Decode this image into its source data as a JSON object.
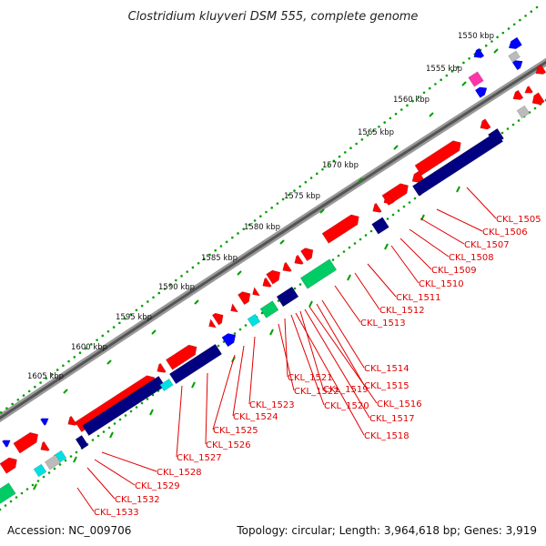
{
  "title": "Clostridium kluyveri DSM 555, complete genome",
  "accession": "Accession: NC_009706",
  "topology": "Topology: circular; Length: 3,964,618 bp; Genes: 3,919",
  "ticks": [
    "1550 kbp",
    "1555 kbp",
    "1560 kbp",
    "1565 kbp",
    "1570 kbp",
    "1575 kbp",
    "1580 kbp",
    "1585 kbp",
    "1590 kbp",
    "1595 kbp",
    "1600 kbp",
    "1605 kbp"
  ],
  "genes": [
    "CKL_1505",
    "CKL_1506",
    "CKL_1507",
    "CKL_1508",
    "CKL_1509",
    "CKL_1510",
    "CKL_1511",
    "CKL_1512",
    "CKL_1513",
    "CKL_1514",
    "CKL_1515",
    "CKL_1516",
    "CKL_1517",
    "CKL_1518",
    "CKL_1519",
    "CKL_1520",
    "CKL_1521",
    "CKL_1522",
    "CKL_1523",
    "CKL_1524",
    "CKL_1525",
    "CKL_1526",
    "CKL_1527",
    "CKL_1528",
    "CKL_1529",
    "CKL_1532",
    "CKL_1533"
  ],
  "colors": {
    "forward_cds": "#ff0000",
    "reverse_cds": "#000080",
    "blue_feature": "#0000ff",
    "cyan_feature": "#00e0e0",
    "green_feature": "#00cc66",
    "magenta_feature": "#ff33aa",
    "grey_feature": "#bbbbbb",
    "backbone": "#777777",
    "labels": "#e00000"
  }
}
